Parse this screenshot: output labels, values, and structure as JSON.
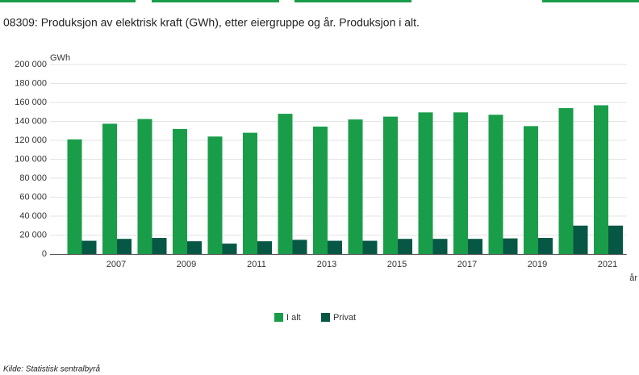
{
  "chart_data": {
    "type": "bar",
    "title": "08309: Produksjon av elektrisk kraft (GWh), etter eiergruppe og år. Produksjon i alt.",
    "y_label": "GWh",
    "x_label": "år",
    "categories": [
      null,
      "2007",
      null,
      "2009",
      null,
      "2011",
      null,
      "2013",
      null,
      "2015",
      null,
      "2017",
      null,
      "2019",
      null,
      "2021"
    ],
    "series": [
      {
        "name": "I alt",
        "color": "#1a9d49",
        "values": [
          121000,
          137500,
          142500,
          132000,
          124000,
          128000,
          148000,
          134500,
          142000,
          145000,
          149500,
          149500,
          147000,
          135000,
          154000,
          157000
        ]
      },
      {
        "name": "Privat",
        "color": "#075745",
        "values": [
          14000,
          16000,
          17000,
          13500,
          11000,
          13500,
          15000,
          14000,
          14000,
          16000,
          16000,
          16000,
          16500,
          17000,
          30000,
          30000
        ]
      }
    ],
    "ylim": [
      0,
      200000
    ],
    "yticks": [
      0,
      {
        "value": 20000,
        "label": "20 000"
      },
      {
        "value": 40000,
        "label": "40 000"
      },
      {
        "value": 60000,
        "label": "60 000"
      },
      {
        "value": 80000,
        "label": "80 000"
      },
      {
        "value": 100000,
        "label": "100 000"
      },
      {
        "value": 120000,
        "label": "120 000"
      },
      {
        "value": 140000,
        "label": "140 000"
      },
      {
        "value": 160000,
        "label": "160 000"
      },
      {
        "value": 180000,
        "label": "180 000"
      },
      {
        "value": 200000,
        "label": "200 000"
      }
    ],
    "grid": true,
    "source": "Kilde:  Statistisk sentralbyrå"
  }
}
